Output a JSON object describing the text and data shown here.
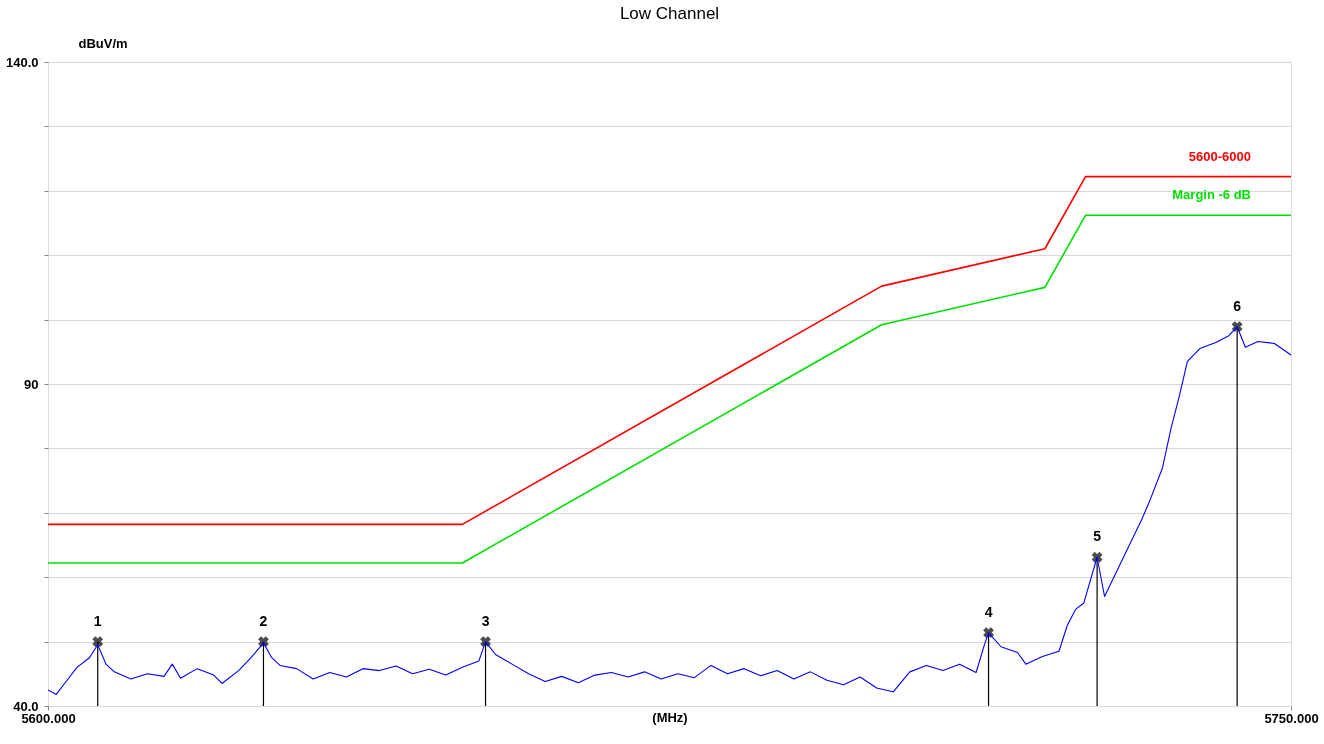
{
  "chart_data": {
    "type": "line",
    "title": "Low Channel",
    "xlabel": "(MHz)",
    "ylabel": "dBuV/m",
    "xlim": [
      5600,
      5750
    ],
    "xticks": [
      {
        "value": 5600,
        "label": "5600.000"
      },
      {
        "value": 5750,
        "label": "5750.000"
      }
    ],
    "ylim": [
      40,
      140
    ],
    "yticks": [
      {
        "value": 40,
        "label": "40.0"
      },
      {
        "value": 50,
        "label": null
      },
      {
        "value": 60,
        "label": null
      },
      {
        "value": 70,
        "label": null
      },
      {
        "value": 80,
        "label": null
      },
      {
        "value": 90,
        "label": "90"
      },
      {
        "value": 100,
        "label": null
      },
      {
        "value": 110,
        "label": null
      },
      {
        "value": 120,
        "label": null
      },
      {
        "value": 130,
        "label": null
      },
      {
        "value": 140,
        "label": "140.0"
      }
    ],
    "grid": "y",
    "line_style": "solid",
    "annotations": [
      {
        "text": "1",
        "x": 5606,
        "y": 50
      },
      {
        "text": "2",
        "x": 5626,
        "y": 50
      },
      {
        "text": "3",
        "x": 5652.8,
        "y": 50
      },
      {
        "text": "4",
        "x": 5713.5,
        "y": 51.4
      },
      {
        "text": "5",
        "x": 5726.6,
        "y": 63.1
      },
      {
        "text": "6",
        "x": 5743.5,
        "y": 98.9
      }
    ],
    "series": [
      {
        "name": "5600-6000",
        "color": "#ff0000",
        "x": [
          5600,
          5650,
          5700.6,
          5720.3,
          5725.2,
          5750
        ],
        "values": [
          68.2,
          68.2,
          105.2,
          111,
          122.2,
          122.2
        ]
      },
      {
        "name": "Margin -6 dB",
        "color": "#00e000",
        "x": [
          5600,
          5650,
          5700.6,
          5720.3,
          5725.2,
          5750
        ],
        "values": [
          62.2,
          62.2,
          99.2,
          105,
          116.2,
          116.2
        ]
      },
      {
        "color": "#0000ff",
        "x": [
          5600,
          5601,
          5602,
          5603.5,
          5605,
          5606,
          5607,
          5608,
          5610,
          5612,
          5614,
          5615,
          5616,
          5618,
          5620,
          5621,
          5623,
          5624.5,
          5626,
          5627,
          5628,
          5630,
          5632,
          5634,
          5636,
          5638,
          5640,
          5642,
          5644,
          5646,
          5648,
          5650,
          5652,
          5652.8,
          5654,
          5656,
          5658,
          5660,
          5662,
          5664,
          5666,
          5668,
          5670,
          5672,
          5674,
          5676,
          5678,
          5680,
          5682,
          5684,
          5686,
          5688,
          5690,
          5692,
          5694,
          5696,
          5698,
          5700,
          5702,
          5704,
          5706,
          5708,
          5710,
          5712,
          5713,
          5713.5,
          5715,
          5717,
          5718,
          5720,
          5722,
          5723,
          5724,
          5725,
          5726.6,
          5727.5,
          5729,
          5730.5,
          5732,
          5733,
          5734.5,
          5735.5,
          5736.5,
          5737.5,
          5739,
          5741,
          5742.5,
          5743.5,
          5744.5,
          5746,
          5748,
          5750
        ],
        "values": [
          42.5,
          41.8,
          43.5,
          46,
          47.5,
          49.5,
          46.5,
          45.3,
          44.2,
          45,
          44.6,
          46.5,
          44.3,
          45.8,
          44.8,
          43.5,
          45.5,
          47.5,
          49.8,
          47.5,
          46.3,
          45.8,
          44.2,
          45.2,
          44.5,
          45.8,
          45.5,
          46.2,
          45,
          45.7,
          44.8,
          46,
          47,
          50,
          48,
          46.5,
          45,
          43.8,
          44.6,
          43.6,
          44.8,
          45.2,
          44.5,
          45.3,
          44.2,
          45,
          44.4,
          46.3,
          45,
          45.8,
          44.7,
          45.5,
          44.2,
          45.3,
          44,
          43.3,
          44.5,
          42.8,
          42.2,
          45.3,
          46.3,
          45.5,
          46.5,
          45.2,
          49.5,
          51.4,
          49.2,
          48.3,
          46.5,
          47.7,
          48.5,
          52.5,
          55,
          56,
          63.1,
          57,
          61,
          65,
          69,
          72,
          77,
          83,
          88,
          93.5,
          95.5,
          96.5,
          97.5,
          98.9,
          95.7,
          96.6,
          96.3,
          94.5
        ]
      },
      {
        "color": "#000000",
        "type": "lollipop",
        "marker": "cross",
        "x": [
          5606,
          5626,
          5652.8,
          5713.5,
          5726.6,
          5743.5
        ],
        "values": [
          50,
          50,
          50,
          51.4,
          63.1,
          98.9
        ]
      }
    ]
  }
}
